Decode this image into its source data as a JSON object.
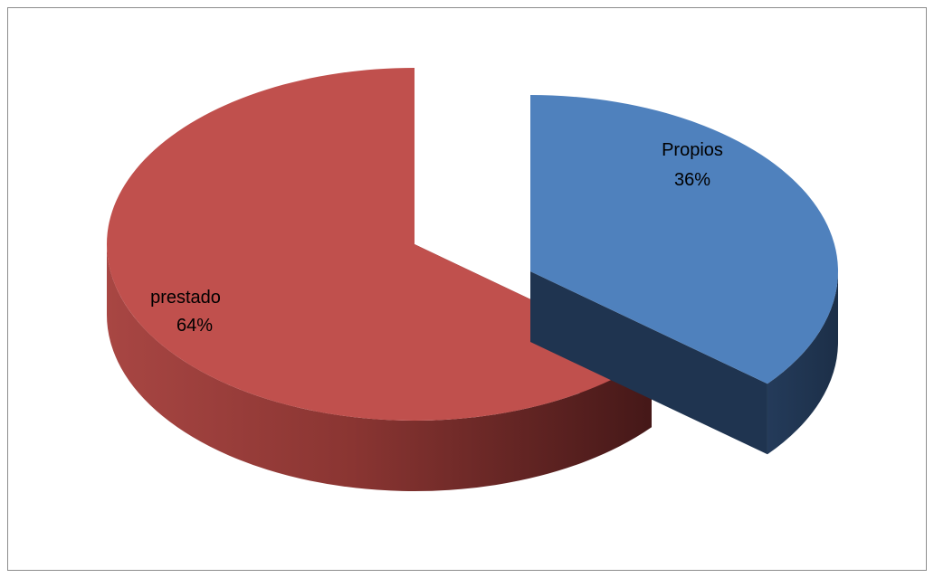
{
  "chart_data": {
    "type": "pie",
    "style": "3d-exploded",
    "categories": [
      "Propios",
      "prestado"
    ],
    "values": [
      36,
      64
    ],
    "labels": [
      {
        "name": "Propios",
        "percent": "36%"
      },
      {
        "name": "prestado",
        "percent": "64%"
      }
    ],
    "title": "",
    "legend": "none",
    "colors": {
      "Propios": {
        "top": "#4f81bd",
        "side": "#1f3450"
      },
      "prestado": {
        "top": "#c0504d",
        "side": "#4a1b1b"
      }
    }
  }
}
